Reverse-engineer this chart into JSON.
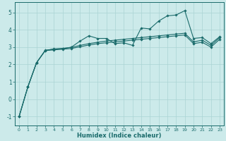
{
  "xlabel": "Humidex (Indice chaleur)",
  "background_color": "#cceaea",
  "grid_color": "#aad4d4",
  "line_color": "#1a6b6b",
  "xlim": [
    -0.5,
    23.5
  ],
  "ylim": [
    -1.5,
    5.6
  ],
  "xticks": [
    0,
    1,
    2,
    3,
    4,
    5,
    6,
    7,
    8,
    9,
    10,
    11,
    12,
    13,
    14,
    15,
    16,
    17,
    18,
    19,
    20,
    21,
    22,
    23
  ],
  "yticks": [
    -1,
    0,
    1,
    2,
    3,
    4,
    5
  ],
  "x": [
    0,
    1,
    2,
    3,
    4,
    5,
    6,
    7,
    8,
    9,
    10,
    11,
    12,
    13,
    14,
    15,
    16,
    17,
    18,
    19,
    20,
    21,
    22,
    23
  ],
  "series": [
    [
      -1.0,
      0.7,
      2.1,
      2.8,
      2.9,
      2.9,
      3.0,
      3.35,
      3.65,
      3.5,
      3.5,
      3.2,
      3.25,
      3.1,
      4.1,
      4.05,
      4.5,
      4.8,
      4.85,
      5.1,
      3.5,
      3.55,
      3.2,
      3.6
    ],
    [
      -1.0,
      0.7,
      2.1,
      2.82,
      2.88,
      2.93,
      2.98,
      3.1,
      3.2,
      3.28,
      3.35,
      3.4,
      3.45,
      3.5,
      3.55,
      3.6,
      3.65,
      3.7,
      3.75,
      3.8,
      3.3,
      3.4,
      3.1,
      3.55
    ],
    [
      -1.0,
      0.7,
      2.1,
      2.8,
      2.84,
      2.88,
      2.92,
      3.02,
      3.12,
      3.2,
      3.25,
      3.3,
      3.35,
      3.4,
      3.45,
      3.5,
      3.55,
      3.6,
      3.65,
      3.7,
      3.2,
      3.28,
      3.0,
      3.45
    ]
  ]
}
